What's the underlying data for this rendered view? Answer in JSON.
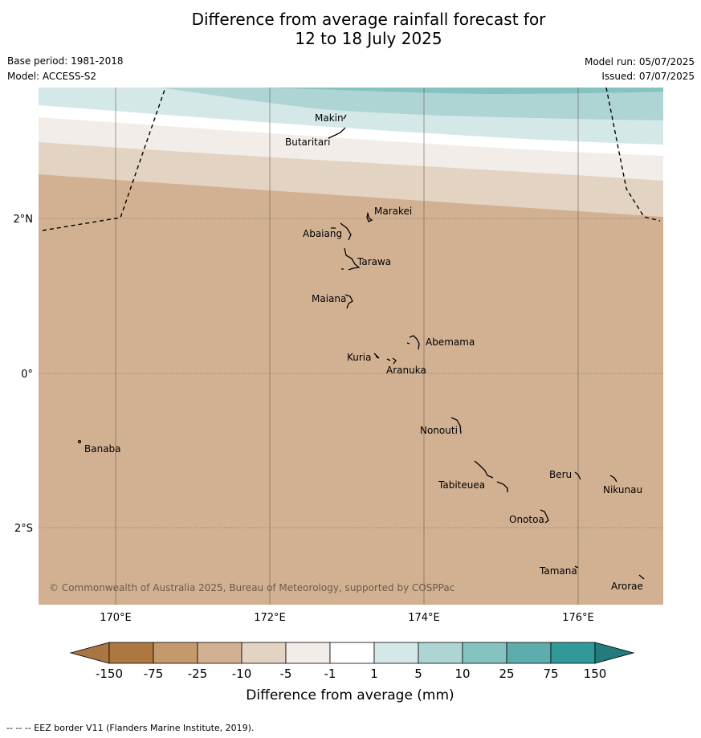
{
  "title": {
    "line1": "Difference from average rainfall forecast for",
    "line2": "12 to 18 July 2025"
  },
  "meta": {
    "base_period": "Base period: 1981-2018",
    "model": "Model: ACCESS-S2",
    "model_run": "Model run: 05/07/2025",
    "issued": "Issued: 07/07/2025"
  },
  "map": {
    "lat_labels": [
      "2°N",
      "0°",
      "2°S"
    ],
    "lon_labels": [
      "170°E",
      "172°E",
      "174°E",
      "176°E"
    ],
    "islands": [
      {
        "name": "Makin"
      },
      {
        "name": "Butaritari"
      },
      {
        "name": "Marakei"
      },
      {
        "name": "Abaiang"
      },
      {
        "name": "Tarawa"
      },
      {
        "name": "Maiana"
      },
      {
        "name": "Abemama"
      },
      {
        "name": "Kuria"
      },
      {
        "name": "Aranuka"
      },
      {
        "name": "Banaba"
      },
      {
        "name": "Nonouti"
      },
      {
        "name": "Beru"
      },
      {
        "name": "Tabiteuea"
      },
      {
        "name": "Nikunau"
      },
      {
        "name": "Onotoa"
      },
      {
        "name": "Tamana"
      },
      {
        "name": "Arorae"
      }
    ],
    "copyright": "© Commonwealth of Australia 2025, Bureau of Meteorology, supported by COSPPac"
  },
  "legend": {
    "title": "Difference from average (mm)",
    "ticks": [
      "-150",
      "-75",
      "-25",
      "-10",
      "-5",
      "-1",
      "1",
      "5",
      "10",
      "25",
      "75",
      "150"
    ],
    "colors": [
      "#a97543",
      "#ae7740",
      "#c49a6c",
      "#d2b193",
      "#e3d3c3",
      "#f2ede8",
      "#ffffff",
      "#d5e8e8",
      "#afd4d4",
      "#85c3c1",
      "#5cadac",
      "#319a99",
      "#237c7b"
    ]
  },
  "footnote": "--  --  -- EEZ border V11 (Flanders Marine Institute, 2019)."
}
